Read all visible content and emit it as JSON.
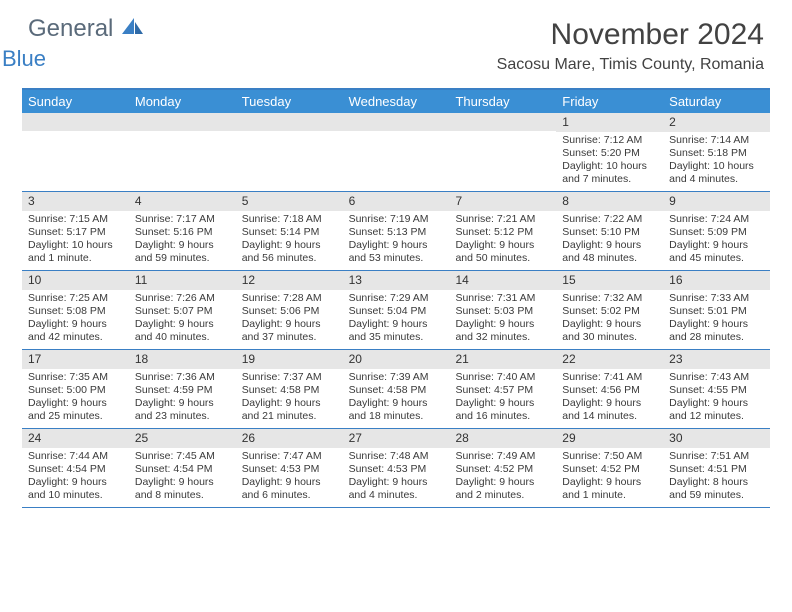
{
  "brand": {
    "text_general": "General",
    "text_blue": "Blue"
  },
  "title": "November 2024",
  "location": "Sacosu Mare, Timis County, Romania",
  "colors": {
    "header_bg": "#3a8fd4",
    "border": "#3a7fc4",
    "daynum_bg": "#e6e6e6",
    "text": "#333333",
    "logo_grey": "#5a6a7a",
    "logo_blue": "#3a7fc4",
    "background": "#ffffff"
  },
  "day_names": [
    "Sunday",
    "Monday",
    "Tuesday",
    "Wednesday",
    "Thursday",
    "Friday",
    "Saturday"
  ],
  "weeks": [
    [
      null,
      null,
      null,
      null,
      null,
      {
        "n": "1",
        "sr": "Sunrise: 7:12 AM",
        "ss": "Sunset: 5:20 PM",
        "d1": "Daylight: 10 hours",
        "d2": "and 7 minutes."
      },
      {
        "n": "2",
        "sr": "Sunrise: 7:14 AM",
        "ss": "Sunset: 5:18 PM",
        "d1": "Daylight: 10 hours",
        "d2": "and 4 minutes."
      }
    ],
    [
      {
        "n": "3",
        "sr": "Sunrise: 7:15 AM",
        "ss": "Sunset: 5:17 PM",
        "d1": "Daylight: 10 hours",
        "d2": "and 1 minute."
      },
      {
        "n": "4",
        "sr": "Sunrise: 7:17 AM",
        "ss": "Sunset: 5:16 PM",
        "d1": "Daylight: 9 hours",
        "d2": "and 59 minutes."
      },
      {
        "n": "5",
        "sr": "Sunrise: 7:18 AM",
        "ss": "Sunset: 5:14 PM",
        "d1": "Daylight: 9 hours",
        "d2": "and 56 minutes."
      },
      {
        "n": "6",
        "sr": "Sunrise: 7:19 AM",
        "ss": "Sunset: 5:13 PM",
        "d1": "Daylight: 9 hours",
        "d2": "and 53 minutes."
      },
      {
        "n": "7",
        "sr": "Sunrise: 7:21 AM",
        "ss": "Sunset: 5:12 PM",
        "d1": "Daylight: 9 hours",
        "d2": "and 50 minutes."
      },
      {
        "n": "8",
        "sr": "Sunrise: 7:22 AM",
        "ss": "Sunset: 5:10 PM",
        "d1": "Daylight: 9 hours",
        "d2": "and 48 minutes."
      },
      {
        "n": "9",
        "sr": "Sunrise: 7:24 AM",
        "ss": "Sunset: 5:09 PM",
        "d1": "Daylight: 9 hours",
        "d2": "and 45 minutes."
      }
    ],
    [
      {
        "n": "10",
        "sr": "Sunrise: 7:25 AM",
        "ss": "Sunset: 5:08 PM",
        "d1": "Daylight: 9 hours",
        "d2": "and 42 minutes."
      },
      {
        "n": "11",
        "sr": "Sunrise: 7:26 AM",
        "ss": "Sunset: 5:07 PM",
        "d1": "Daylight: 9 hours",
        "d2": "and 40 minutes."
      },
      {
        "n": "12",
        "sr": "Sunrise: 7:28 AM",
        "ss": "Sunset: 5:06 PM",
        "d1": "Daylight: 9 hours",
        "d2": "and 37 minutes."
      },
      {
        "n": "13",
        "sr": "Sunrise: 7:29 AM",
        "ss": "Sunset: 5:04 PM",
        "d1": "Daylight: 9 hours",
        "d2": "and 35 minutes."
      },
      {
        "n": "14",
        "sr": "Sunrise: 7:31 AM",
        "ss": "Sunset: 5:03 PM",
        "d1": "Daylight: 9 hours",
        "d2": "and 32 minutes."
      },
      {
        "n": "15",
        "sr": "Sunrise: 7:32 AM",
        "ss": "Sunset: 5:02 PM",
        "d1": "Daylight: 9 hours",
        "d2": "and 30 minutes."
      },
      {
        "n": "16",
        "sr": "Sunrise: 7:33 AM",
        "ss": "Sunset: 5:01 PM",
        "d1": "Daylight: 9 hours",
        "d2": "and 28 minutes."
      }
    ],
    [
      {
        "n": "17",
        "sr": "Sunrise: 7:35 AM",
        "ss": "Sunset: 5:00 PM",
        "d1": "Daylight: 9 hours",
        "d2": "and 25 minutes."
      },
      {
        "n": "18",
        "sr": "Sunrise: 7:36 AM",
        "ss": "Sunset: 4:59 PM",
        "d1": "Daylight: 9 hours",
        "d2": "and 23 minutes."
      },
      {
        "n": "19",
        "sr": "Sunrise: 7:37 AM",
        "ss": "Sunset: 4:58 PM",
        "d1": "Daylight: 9 hours",
        "d2": "and 21 minutes."
      },
      {
        "n": "20",
        "sr": "Sunrise: 7:39 AM",
        "ss": "Sunset: 4:58 PM",
        "d1": "Daylight: 9 hours",
        "d2": "and 18 minutes."
      },
      {
        "n": "21",
        "sr": "Sunrise: 7:40 AM",
        "ss": "Sunset: 4:57 PM",
        "d1": "Daylight: 9 hours",
        "d2": "and 16 minutes."
      },
      {
        "n": "22",
        "sr": "Sunrise: 7:41 AM",
        "ss": "Sunset: 4:56 PM",
        "d1": "Daylight: 9 hours",
        "d2": "and 14 minutes."
      },
      {
        "n": "23",
        "sr": "Sunrise: 7:43 AM",
        "ss": "Sunset: 4:55 PM",
        "d1": "Daylight: 9 hours",
        "d2": "and 12 minutes."
      }
    ],
    [
      {
        "n": "24",
        "sr": "Sunrise: 7:44 AM",
        "ss": "Sunset: 4:54 PM",
        "d1": "Daylight: 9 hours",
        "d2": "and 10 minutes."
      },
      {
        "n": "25",
        "sr": "Sunrise: 7:45 AM",
        "ss": "Sunset: 4:54 PM",
        "d1": "Daylight: 9 hours",
        "d2": "and 8 minutes."
      },
      {
        "n": "26",
        "sr": "Sunrise: 7:47 AM",
        "ss": "Sunset: 4:53 PM",
        "d1": "Daylight: 9 hours",
        "d2": "and 6 minutes."
      },
      {
        "n": "27",
        "sr": "Sunrise: 7:48 AM",
        "ss": "Sunset: 4:53 PM",
        "d1": "Daylight: 9 hours",
        "d2": "and 4 minutes."
      },
      {
        "n": "28",
        "sr": "Sunrise: 7:49 AM",
        "ss": "Sunset: 4:52 PM",
        "d1": "Daylight: 9 hours",
        "d2": "and 2 minutes."
      },
      {
        "n": "29",
        "sr": "Sunrise: 7:50 AM",
        "ss": "Sunset: 4:52 PM",
        "d1": "Daylight: 9 hours",
        "d2": "and 1 minute."
      },
      {
        "n": "30",
        "sr": "Sunrise: 7:51 AM",
        "ss": "Sunset: 4:51 PM",
        "d1": "Daylight: 8 hours",
        "d2": "and 59 minutes."
      }
    ]
  ]
}
